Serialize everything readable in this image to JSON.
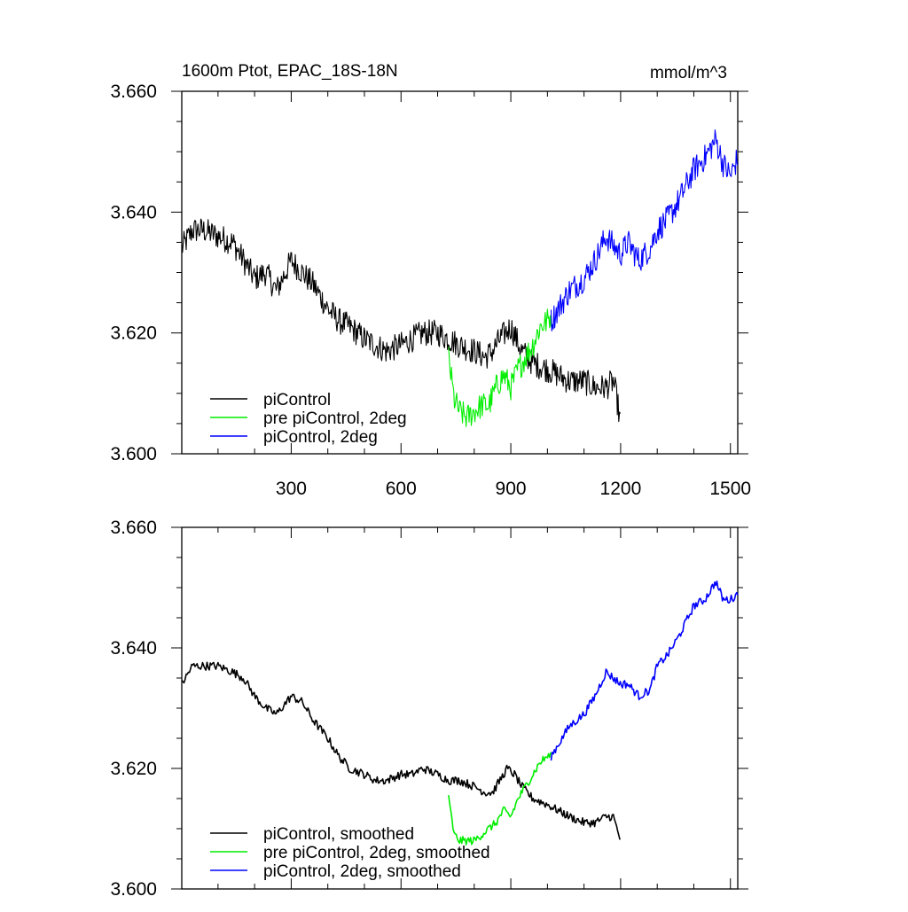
{
  "figure": {
    "title": "1600m Ptot, EPAC_18S-18N",
    "units": "mmol/m^3"
  },
  "chart_data": [
    {
      "type": "line",
      "panel": "top",
      "xlim": [
        1,
        1520
      ],
      "ylim": [
        3.6,
        3.66
      ],
      "x_ticks": [
        300,
        600,
        900,
        1200,
        1500
      ],
      "x_tick_labels": [
        "300",
        "600",
        "900",
        "1200",
        "1500"
      ],
      "y_ticks": [
        3.6,
        3.62,
        3.64,
        3.66
      ],
      "y_tick_labels": [
        "3.600",
        "3.620",
        "3.640",
        "3.660"
      ],
      "grid": false,
      "legend_position": "bottom-left",
      "series": [
        {
          "name": "piControl",
          "color": "#000000",
          "x": [
            1,
            30,
            60,
            100,
            140,
            170,
            200,
            230,
            260,
            300,
            330,
            360,
            400,
            430,
            460,
            500,
            530,
            560,
            600,
            630,
            660,
            700,
            730,
            760,
            800,
            830,
            850,
            870,
            900,
            930,
            960,
            1000,
            1030,
            1060,
            1100,
            1130,
            1160,
            1180,
            1190,
            1200
          ],
          "y": [
            3.634,
            3.637,
            3.637,
            3.636,
            3.635,
            3.632,
            3.629,
            3.63,
            3.627,
            3.632,
            3.63,
            3.628,
            3.624,
            3.622,
            3.621,
            3.619,
            3.618,
            3.617,
            3.618,
            3.619,
            3.62,
            3.62,
            3.619,
            3.618,
            3.617,
            3.616,
            3.617,
            3.619,
            3.621,
            3.617,
            3.615,
            3.614,
            3.613,
            3.612,
            3.612,
            3.611,
            3.611,
            3.612,
            3.609,
            3.605
          ]
        },
        {
          "name": "pre piControl, 2deg",
          "color": "#00ee00",
          "x": [
            730,
            745,
            760,
            780,
            800,
            820,
            840,
            860,
            880,
            900,
            920,
            940,
            960,
            980,
            1000,
            1010
          ],
          "y": [
            3.616,
            3.609,
            3.607,
            3.606,
            3.607,
            3.608,
            3.608,
            3.611,
            3.613,
            3.611,
            3.614,
            3.616,
            3.618,
            3.621,
            3.622,
            3.623
          ]
        },
        {
          "name": "piControl, 2deg",
          "color": "#0000ff",
          "x": [
            1010,
            1030,
            1060,
            1100,
            1130,
            1160,
            1200,
            1220,
            1250,
            1280,
            1300,
            1330,
            1360,
            1400,
            1430,
            1460,
            1480,
            1500,
            1520
          ],
          "y": [
            3.622,
            3.624,
            3.627,
            3.629,
            3.632,
            3.636,
            3.633,
            3.635,
            3.632,
            3.634,
            3.637,
            3.639,
            3.642,
            3.647,
            3.649,
            3.652,
            3.648,
            3.646,
            3.649
          ]
        }
      ]
    },
    {
      "type": "line",
      "panel": "bottom",
      "xlim": [
        1,
        1520
      ],
      "ylim": [
        3.6,
        3.66
      ],
      "x_ticks": [
        300,
        600,
        900,
        1200,
        1500
      ],
      "y_ticks": [
        3.6,
        3.62,
        3.64,
        3.66
      ],
      "y_tick_labels": [
        "3.600",
        "3.620",
        "3.640",
        "3.660"
      ],
      "grid": false,
      "legend_position": "bottom-left",
      "series": [
        {
          "name": "piControl, smoothed",
          "color": "#000000",
          "x": [
            1,
            30,
            60,
            100,
            140,
            170,
            200,
            230,
            260,
            300,
            330,
            360,
            400,
            430,
            460,
            500,
            530,
            560,
            600,
            630,
            660,
            700,
            730,
            760,
            800,
            830,
            850,
            870,
            890,
            910,
            930,
            960,
            1000,
            1030,
            1060,
            1100,
            1130,
            1160,
            1180,
            1200
          ],
          "y": [
            3.634,
            3.637,
            3.637,
            3.637,
            3.636,
            3.635,
            3.632,
            3.63,
            3.629,
            3.632,
            3.631,
            3.628,
            3.625,
            3.622,
            3.62,
            3.619,
            3.618,
            3.618,
            3.619,
            3.619,
            3.62,
            3.619,
            3.618,
            3.618,
            3.617,
            3.616,
            3.616,
            3.618,
            3.62,
            3.619,
            3.617,
            3.615,
            3.614,
            3.613,
            3.612,
            3.611,
            3.611,
            3.612,
            3.612,
            3.608
          ]
        },
        {
          "name": "pre piControl, 2deg, smoothed",
          "color": "#00ee00",
          "x": [
            730,
            745,
            760,
            780,
            800,
            820,
            840,
            860,
            880,
            900,
            920,
            940,
            960,
            980,
            1000,
            1010
          ],
          "y": [
            3.615,
            3.609,
            3.608,
            3.608,
            3.608,
            3.609,
            3.61,
            3.611,
            3.613,
            3.612,
            3.615,
            3.617,
            3.619,
            3.621,
            3.622,
            3.622
          ]
        },
        {
          "name": "piControl, 2deg, smoothed",
          "color": "#0000ff",
          "x": [
            1010,
            1030,
            1060,
            1100,
            1130,
            1160,
            1200,
            1220,
            1250,
            1280,
            1300,
            1330,
            1360,
            1400,
            1430,
            1460,
            1480,
            1500,
            1520
          ],
          "y": [
            3.622,
            3.624,
            3.627,
            3.629,
            3.632,
            3.636,
            3.634,
            3.634,
            3.632,
            3.633,
            3.637,
            3.639,
            3.642,
            3.647,
            3.648,
            3.651,
            3.648,
            3.648,
            3.649
          ]
        }
      ]
    }
  ]
}
